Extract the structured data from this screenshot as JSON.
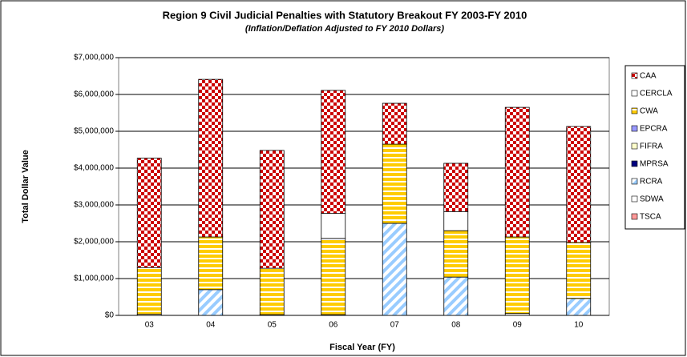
{
  "chart_data": {
    "type": "stacked_bar",
    "title": "Region 9 Civil Judicial Penalties with Statutory Breakout FY 2003-FY 2010",
    "subtitle": "(Inflation/Deflation Adjusted to FY 2010 Dollars)",
    "x_axis_label": "Fiscal Year (FY)",
    "y_axis_label": "Total Dollar Value",
    "categories": [
      "03",
      "04",
      "05",
      "06",
      "07",
      "08",
      "09",
      "10"
    ],
    "ylim": [
      0,
      7000000
    ],
    "yticks": [
      {
        "value": 0,
        "label": "$0"
      },
      {
        "value": 1000000,
        "label": "$1,000,000"
      },
      {
        "value": 2000000,
        "label": "$2,000,000"
      },
      {
        "value": 3000000,
        "label": "$3,000,000"
      },
      {
        "value": 4000000,
        "label": "$4,000,000"
      },
      {
        "value": 5000000,
        "label": "$5,000,000"
      },
      {
        "value": 6000000,
        "label": "$6,000,000"
      },
      {
        "value": 7000000,
        "label": "$7,000,000"
      }
    ],
    "grid": true,
    "legend": "right",
    "series": [
      {
        "name": "TSCA",
        "color": "#ff9999",
        "pattern": "solid",
        "values": [
          0,
          0,
          0,
          0,
          0,
          0,
          0,
          0
        ]
      },
      {
        "name": "SDWA",
        "color": "#ffffff",
        "pattern": "solid",
        "values": [
          30000,
          0,
          20000,
          20000,
          0,
          0,
          50000,
          0
        ]
      },
      {
        "name": "RCRA",
        "color": "#99ccff",
        "pattern": "diagonal",
        "values": [
          0,
          700000,
          0,
          0,
          2500000,
          1040000,
          0,
          460000
        ]
      },
      {
        "name": "MPRSA",
        "color": "#000080",
        "pattern": "solid",
        "values": [
          0,
          0,
          0,
          0,
          0,
          0,
          0,
          0
        ]
      },
      {
        "name": "FIFRA",
        "color": "#ffffcc",
        "pattern": "solid",
        "values": [
          0,
          0,
          0,
          0,
          0,
          0,
          0,
          0
        ]
      },
      {
        "name": "EPCRA",
        "color": "#9999ff",
        "pattern": "solid",
        "values": [
          0,
          0,
          0,
          0,
          0,
          0,
          0,
          0
        ]
      },
      {
        "name": "CWA",
        "color": "#ffcc00",
        "pattern": "stripes",
        "values": [
          1270000,
          1430000,
          1260000,
          2070000,
          2150000,
          1260000,
          2080000,
          1520000
        ]
      },
      {
        "name": "CERCLA",
        "color": "#ffffff",
        "pattern": "solid",
        "values": [
          0,
          0,
          0,
          680000,
          0,
          520000,
          0,
          0
        ]
      },
      {
        "name": "CAA",
        "color": "#cc0000",
        "pattern": "checker",
        "values": [
          2970000,
          4280000,
          3200000,
          3340000,
          1110000,
          1310000,
          3520000,
          3150000
        ]
      }
    ]
  }
}
